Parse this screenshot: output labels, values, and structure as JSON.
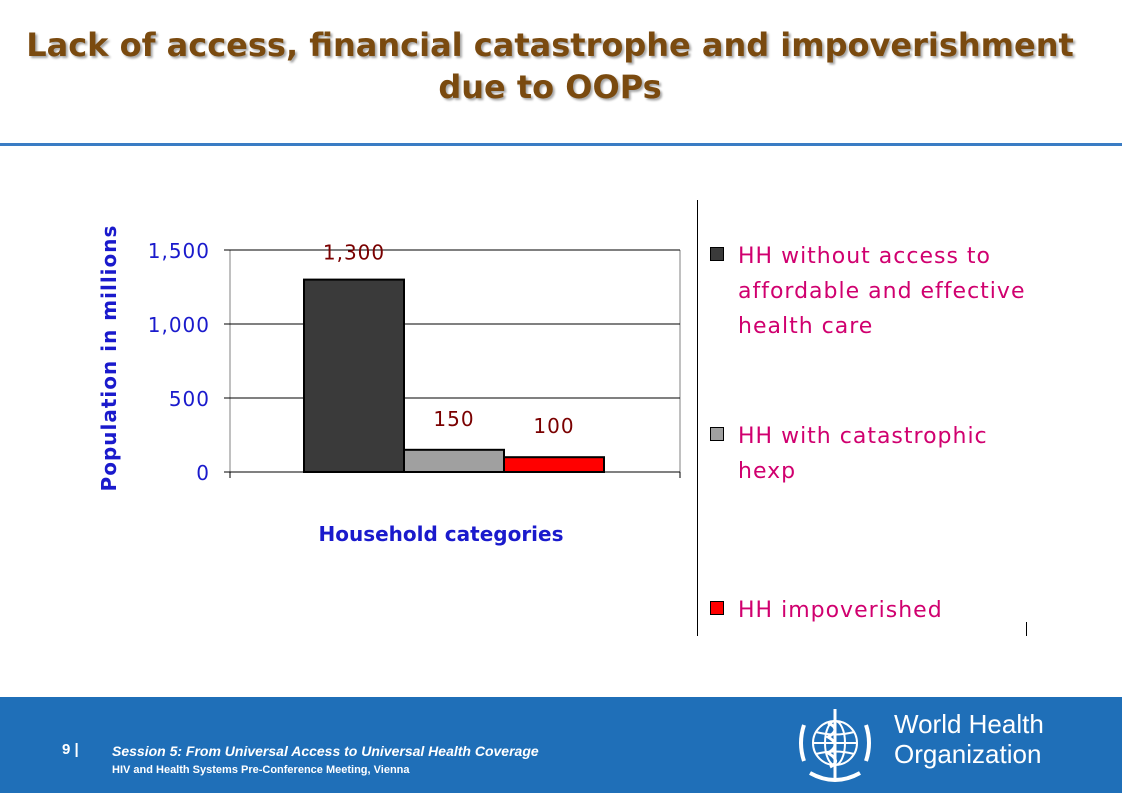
{
  "slide": {
    "title_line1": "Lack of access, financial catastrophe and impoverishment",
    "title_line2": "due to OOPs"
  },
  "chart_data": {
    "type": "bar",
    "categories": [
      "HH without access to affordable and effective health care",
      "HH with catastrophic hexp",
      "HH impoverished"
    ],
    "values": [
      1300,
      150,
      100
    ],
    "value_labels": [
      "1,300",
      "150",
      "100"
    ],
    "colors": [
      "#3a3a3a",
      "#a0a0a0",
      "#ff0000"
    ],
    "xlabel": "Household categories",
    "ylabel": "Population in millions",
    "ylim": [
      0,
      1500
    ],
    "yticks": [
      0,
      500,
      1000,
      1500
    ],
    "ytick_labels": [
      "0",
      "500",
      "1,000",
      "1,500"
    ],
    "grid": true,
    "legend_position": "right",
    "legend": [
      "HH without access to affordable and effective health care",
      "HH with catastrophic hexp",
      "HH impoverished"
    ]
  },
  "footer": {
    "page_number": "9 |",
    "session_text": "Session 5: From Universal Access to Universal Health Coverage",
    "meeting_text": "HIV and Health Systems Pre-Conference Meeting, Vienna",
    "org_line1": "World Health",
    "org_line2": "Organization",
    "emblem_icon": "who-emblem-icon"
  }
}
